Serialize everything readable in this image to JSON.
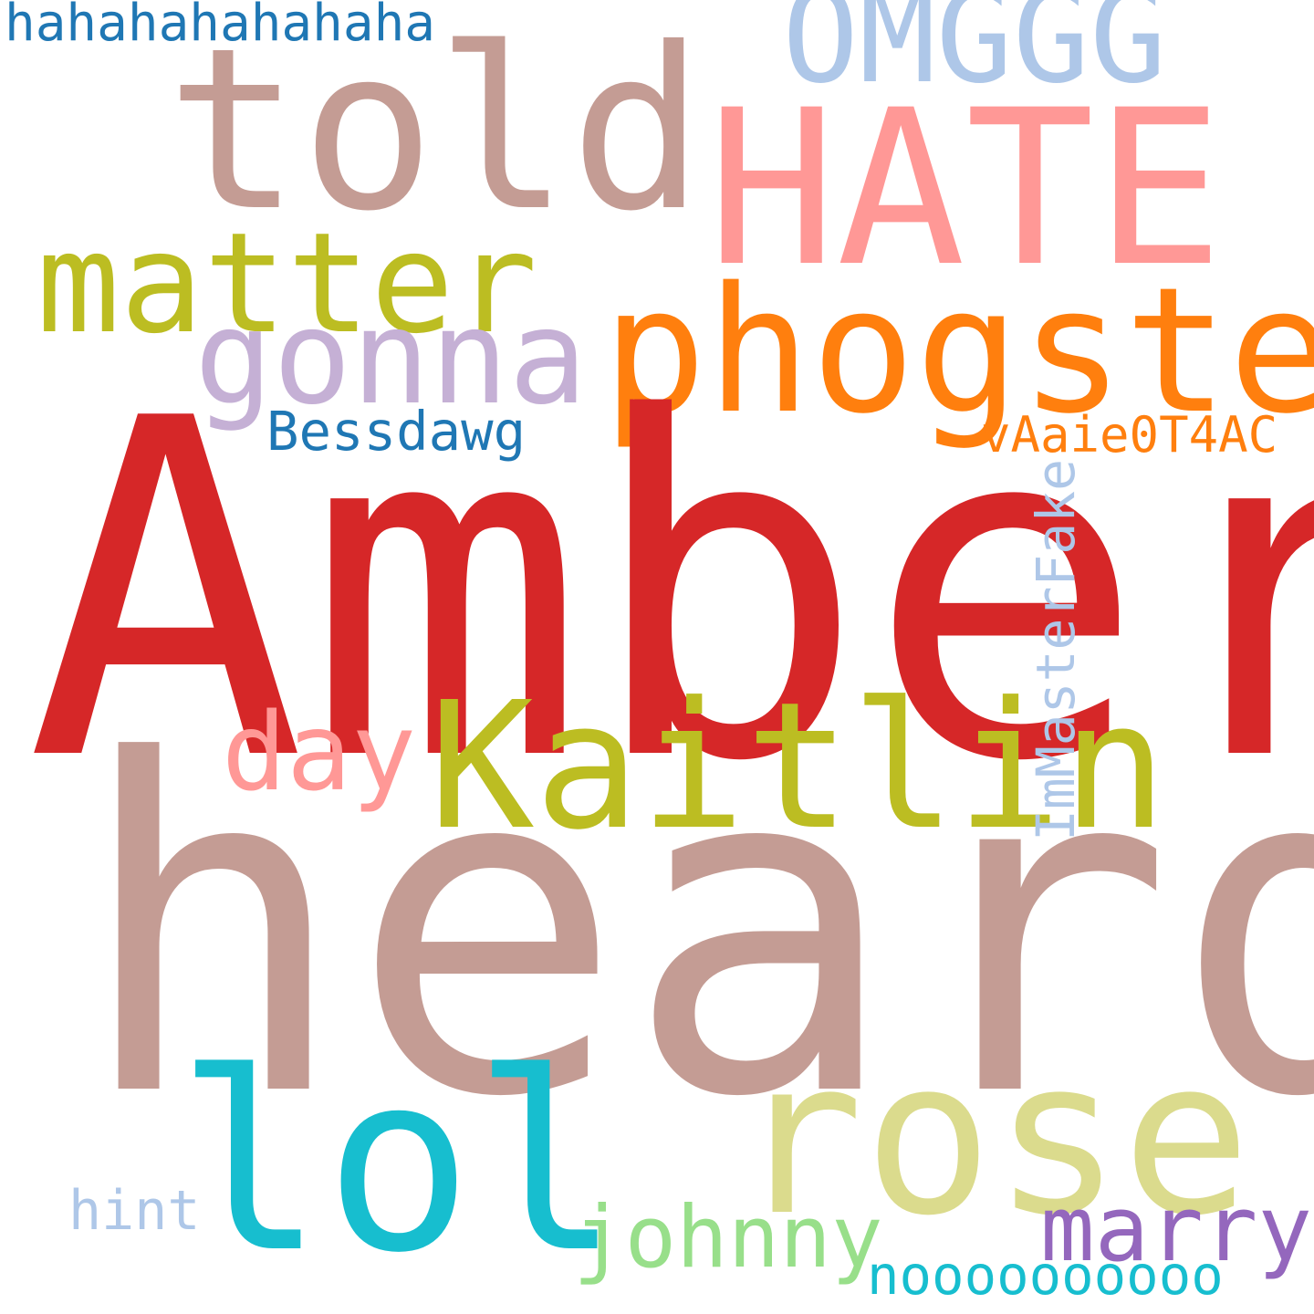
{
  "background": "#ffffff",
  "words": {
    "amber": {
      "text": "Amber",
      "color": "#d62728"
    },
    "heard": {
      "text": "heard",
      "color": "#c49c94"
    },
    "told": {
      "text": "told",
      "color": "#c49c94"
    },
    "hate": {
      "text": "HATE",
      "color": "#ff9896"
    },
    "omggg": {
      "text": "OMGGG",
      "color": "#aec7e8"
    },
    "matter": {
      "text": "matter",
      "color": "#bcbd22"
    },
    "phogsten": {
      "text": "phogsten",
      "color": "#ff7f0e"
    },
    "gonna": {
      "text": "gonna",
      "color": "#c5b0d5"
    },
    "bessdawg": {
      "text": "Bessdawg",
      "color": "#1f77b4"
    },
    "vaaie": {
      "text": "vAaie0T4AC",
      "color": "#ff7f0e"
    },
    "day": {
      "text": "day",
      "color": "#ff9896"
    },
    "kaitlin": {
      "text": "Kaitlin",
      "color": "#bcbd22"
    },
    "immaster": {
      "text": "ImMasterFake",
      "color": "#aec7e8"
    },
    "lol": {
      "text": "lol",
      "color": "#17becf"
    },
    "rose": {
      "text": "rose",
      "color": "#dbdb8d"
    },
    "hint": {
      "text": "hint",
      "color": "#aec7e8"
    },
    "johnny": {
      "text": "johnny",
      "color": "#98df8a"
    },
    "marry": {
      "text": "marry",
      "color": "#9467bd"
    },
    "nooo": {
      "text": "noooooooooo",
      "color": "#17becf"
    },
    "haha": {
      "text": "hahahahahahaha",
      "color": "#1f77b4"
    }
  }
}
